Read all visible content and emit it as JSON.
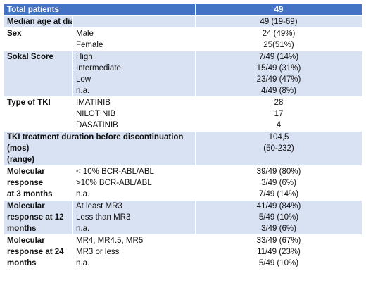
{
  "header": {
    "label": "Total patients",
    "value": "49"
  },
  "rows": [
    {
      "label": [
        "Median age at diagnosis"
      ],
      "options": [],
      "values": [
        "49 (19-69)"
      ],
      "shade": true,
      "height": 17
    },
    {
      "label": [
        "Sex"
      ],
      "options": [
        "Male",
        "Female"
      ],
      "values": [
        "24 (49%)",
        "25(51%)"
      ],
      "shade": false,
      "height": 34
    },
    {
      "label": [
        "Sokal Score"
      ],
      "options": [
        "High",
        "Intermediate",
        "Low",
        "n.a."
      ],
      "values": [
        "7/49 (14%)",
        "15/49 (31%)",
        "23/49 (47%)",
        "4/49 (8%)"
      ],
      "shade": true,
      "height": 68
    },
    {
      "label": [
        "Type of TKI"
      ],
      "options": [
        "IMATINIB",
        "NILOTINIB",
        "DASATINIB"
      ],
      "values": [
        "28",
        "17",
        "4"
      ],
      "shade": false,
      "height": 51
    },
    {
      "label": [
        "TKI treatment duration before discontinuation (mos)",
        "(range)"
      ],
      "options": [],
      "values": [
        "104,5",
        "(50-232)"
      ],
      "shade": true,
      "height": 52,
      "span": true
    },
    {
      "label": [
        "Molecular",
        "response",
        " at 3 months"
      ],
      "options": [
        "< 10% BCR-ABL/ABL",
        ">10% BCR-ABL/ABL",
        "n.a."
      ],
      "values": [
        "39/49 (80%)",
        "3/49 (6%)",
        "7/49 (14%)"
      ],
      "shade": false,
      "height": 51
    },
    {
      "label": [
        "Molecular",
        "response at 12",
        "months"
      ],
      "options": [
        "At least MR3",
        "Less than MR3",
        "n.a."
      ],
      "values": [
        "41/49 (84%)",
        "5/49 (10%)",
        "3/49 (6%)"
      ],
      "shade": true,
      "height": 51
    },
    {
      "label": [
        "Molecular",
        "response at 24",
        "months"
      ],
      "options": [
        "MR4, MR4.5, MR5",
        "MR3 or less",
        "n.a."
      ],
      "values": [
        "33/49 (67%)",
        "11/49 (23%)",
        "5/49 (10%)"
      ],
      "shade": false,
      "height": 51
    }
  ],
  "colors": {
    "header": "#4472c4",
    "shade": "#d9e2f3",
    "plain": "#ffffff",
    "text": "#111111"
  }
}
